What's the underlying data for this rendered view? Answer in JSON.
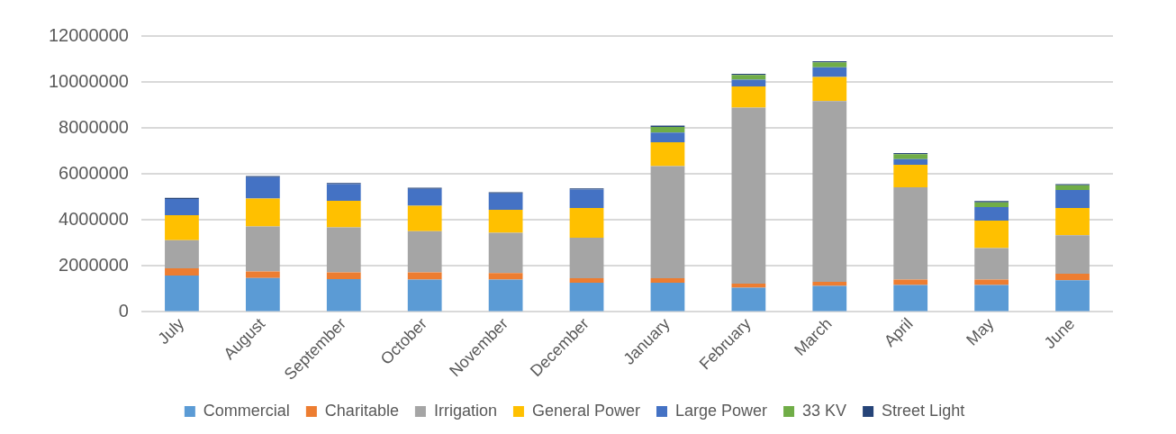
{
  "chart_data": {
    "type": "bar",
    "stacked": true,
    "categories": [
      "July",
      "August",
      "September",
      "October",
      "November",
      "December",
      "January",
      "February",
      "March",
      "April",
      "May",
      "June"
    ],
    "series": [
      {
        "name": "Commercial",
        "color": "#5b9bd5",
        "values": [
          1580000,
          1480000,
          1430000,
          1410000,
          1410000,
          1270000,
          1270000,
          1060000,
          1130000,
          1170000,
          1170000,
          1380000
        ]
      },
      {
        "name": "Charitable",
        "color": "#ed7d31",
        "values": [
          320000,
          280000,
          290000,
          310000,
          280000,
          200000,
          200000,
          170000,
          180000,
          240000,
          240000,
          280000
        ]
      },
      {
        "name": "Irrigation",
        "color": "#a5a5a5",
        "values": [
          1220000,
          1960000,
          1960000,
          1790000,
          1750000,
          1760000,
          4870000,
          7660000,
          7860000,
          4010000,
          1370000,
          1680000
        ]
      },
      {
        "name": "General Power",
        "color": "#ffc000",
        "values": [
          1090000,
          1210000,
          1150000,
          1110000,
          1000000,
          1290000,
          1040000,
          920000,
          1050000,
          980000,
          1190000,
          1180000
        ]
      },
      {
        "name": "Large Power",
        "color": "#4472c4",
        "values": [
          700000,
          930000,
          730000,
          730000,
          720000,
          800000,
          420000,
          290000,
          420000,
          250000,
          590000,
          780000
        ]
      },
      {
        "name": "33 KV",
        "color": "#70ad47",
        "values": [
          0,
          0,
          0,
          0,
          0,
          0,
          250000,
          210000,
          210000,
          210000,
          210000,
          210000
        ]
      },
      {
        "name": "Street Light",
        "color": "#264478",
        "values": [
          50000,
          50000,
          50000,
          50000,
          50000,
          50000,
          50000,
          50000,
          50000,
          50000,
          50000,
          50000
        ]
      }
    ],
    "ylim": [
      0,
      12000000
    ],
    "yticks": [
      0,
      2000000,
      4000000,
      6000000,
      8000000,
      10000000,
      12000000
    ],
    "grid": "y",
    "legend": "bottom"
  }
}
